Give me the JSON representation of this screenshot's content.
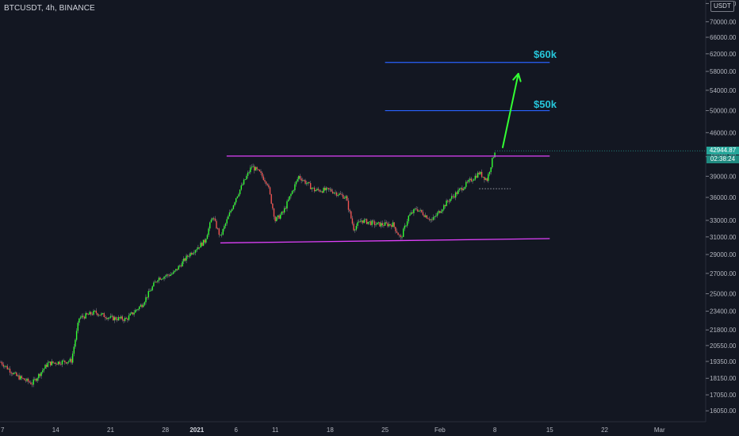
{
  "header": {
    "symbol_line": "BTCUSDT, 4h, BINANCE"
  },
  "axis_unit": "USDT",
  "live_price": "42944.87",
  "countdown": "02:38:24",
  "colors": {
    "background": "#131722",
    "up": "#26a69a",
    "up_bright": "#33ff33",
    "down": "#ef5350",
    "channel": "#e040fb",
    "target_line": "#2962ff",
    "target_text": "#26c6da",
    "arrow": "#33ff33",
    "axis_text": "#b2b5be"
  },
  "annotations": {
    "target_60k": "$60k",
    "target_50k": "$50k"
  },
  "chart_data": {
    "type": "candlestick",
    "title": "BTCUSDT, 4h, BINANCE",
    "y_scale": "log",
    "ylim": [
      15400,
      76000
    ],
    "y_ticks": [
      16050,
      17050,
      18150,
      19350,
      20550,
      21800,
      23400,
      25000,
      27000,
      29000,
      31000,
      33000,
      36000,
      39000,
      42000,
      46000,
      50000,
      54000,
      58000,
      62000,
      66000,
      70000,
      75000
    ],
    "x_ticks": [
      "7",
      "14",
      "21",
      "28",
      "2021",
      "6",
      "11",
      "18",
      "25",
      "Feb",
      "8",
      "15",
      "22",
      "Mar"
    ],
    "price_path": [
      {
        "t": "Dec 7",
        "p": 19300
      },
      {
        "t": "Dec 9",
        "p": 18300
      },
      {
        "t": "Dec 11",
        "p": 17800
      },
      {
        "t": "Dec 13",
        "p": 19200
      },
      {
        "t": "Dec 16",
        "p": 19400
      },
      {
        "t": "Dec 17",
        "p": 22800
      },
      {
        "t": "Dec 19",
        "p": 23300
      },
      {
        "t": "Dec 21",
        "p": 22800
      },
      {
        "t": "Dec 23",
        "p": 22700
      },
      {
        "t": "Dec 25",
        "p": 24000
      },
      {
        "t": "Dec 27",
        "p": 26500
      },
      {
        "t": "Dec 29",
        "p": 27000
      },
      {
        "t": "Dec 31",
        "p": 29000
      },
      {
        "t": "Jan 2",
        "p": 30500
      },
      {
        "t": "Jan 3",
        "p": 33500
      },
      {
        "t": "Jan 4",
        "p": 31000
      },
      {
        "t": "Jan 6",
        "p": 36000
      },
      {
        "t": "Jan 8",
        "p": 40500
      },
      {
        "t": "Jan 9",
        "p": 39500
      },
      {
        "t": "Jan 10",
        "p": 38000
      },
      {
        "t": "Jan 11",
        "p": 33000
      },
      {
        "t": "Jan 12",
        "p": 34000
      },
      {
        "t": "Jan 14",
        "p": 39000
      },
      {
        "t": "Jan 16",
        "p": 37000
      },
      {
        "t": "Jan 18",
        "p": 37000
      },
      {
        "t": "Jan 20",
        "p": 36000
      },
      {
        "t": "Jan 21",
        "p": 32000
      },
      {
        "t": "Jan 22",
        "p": 33000
      },
      {
        "t": "Jan 24",
        "p": 32500
      },
      {
        "t": "Jan 26",
        "p": 32500
      },
      {
        "t": "Jan 27",
        "p": 30800
      },
      {
        "t": "Jan 28",
        "p": 33500
      },
      {
        "t": "Jan 29",
        "p": 34500
      },
      {
        "t": "Jan 31",
        "p": 33000
      },
      {
        "t": "Feb 2",
        "p": 35500
      },
      {
        "t": "Feb 4",
        "p": 37500
      },
      {
        "t": "Feb 6",
        "p": 39500
      },
      {
        "t": "Feb 7",
        "p": 38500
      },
      {
        "t": "Feb 8",
        "p": 42944.87
      }
    ],
    "resistance_line": {
      "value": 42100,
      "from": "Jan 5",
      "to": "Feb 15"
    },
    "support_line": {
      "from_value": 30300,
      "to_value": 30800,
      "from": "Jan 4",
      "to": "Feb 15"
    },
    "target_lines": [
      {
        "label": "$60k",
        "value": 60000,
        "from": "Jan 25",
        "to": "Feb 15"
      },
      {
        "label": "$50k",
        "value": 50000,
        "from": "Jan 25",
        "to": "Feb 15"
      }
    ],
    "projection_arrow": {
      "from": {
        "t": "Feb 9",
        "p": 43500
      },
      "to": {
        "t": "Feb 11",
        "p": 57500
      }
    },
    "current_price": 42944.87
  }
}
